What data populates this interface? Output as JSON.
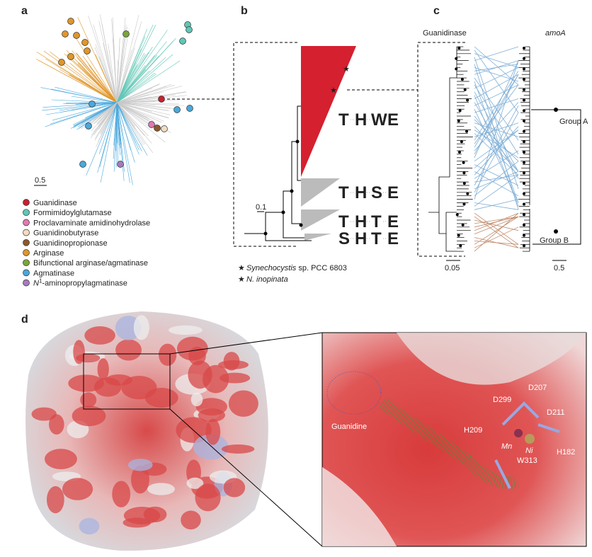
{
  "panel_a": {
    "label": "a",
    "scale": "0.5",
    "legend": [
      {
        "name": "Guanidinase",
        "color": "#c8202e"
      },
      {
        "name": "Formimidoylglutamase",
        "color": "#5fc7b5"
      },
      {
        "name": "Proclavaminate amidinohydrolase",
        "color": "#e07ab0"
      },
      {
        "name": "Guanidinobutyrase",
        "color": "#f1dcc0"
      },
      {
        "name": "Guanidinopropionase",
        "color": "#8a5a2b"
      },
      {
        "name": "Arginase",
        "color": "#e0962a"
      },
      {
        "name": "Bifunctional arginase/agmatinase",
        "color": "#7aa63a"
      },
      {
        "name": "Agmatinase",
        "color": "#4aa8dc"
      },
      {
        "name": {
          "italic": "N",
          "sup": "1",
          "rest": "-aminopropylagmatinase"
        },
        "color": "#a57bbd"
      }
    ]
  },
  "panel_b": {
    "label": "b",
    "scale": "0.1",
    "motifs": [
      [
        "T",
        "H",
        "W",
        "E"
      ],
      [
        "T",
        "H",
        "S",
        "E"
      ],
      [
        "T",
        "H",
        "T",
        "E"
      ],
      [
        "S",
        "H",
        "T",
        "E"
      ]
    ],
    "stars": [
      {
        "name": {
          "italic": "Synechocystis",
          "rest": " sp. PCC 6803"
        },
        "color": "#8cc63f"
      },
      {
        "name": {
          "italic": "N. inopinata"
        },
        "color": "#f5c518"
      }
    ]
  },
  "panel_c": {
    "label": "c",
    "left_title": "Guanidinase",
    "right_title": "amoA",
    "groups": [
      "Group A",
      "Group B"
    ],
    "scale_left": "0.05",
    "scale_right": "0.5"
  },
  "panel_d": {
    "label": "d",
    "ligand": "Guanidine",
    "residues": [
      "D207",
      "D299",
      "D211",
      "H209",
      "W313",
      "H182"
    ],
    "metals": [
      "Mn",
      "Ni"
    ]
  }
}
